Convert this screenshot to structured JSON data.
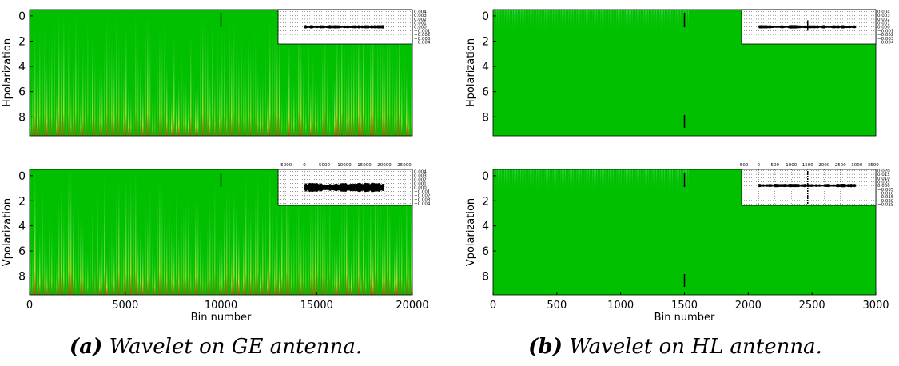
{
  "chart_data": [
    {
      "type": "heatmap",
      "ylabel": "Hpolarization",
      "xlim": [
        0,
        20000
      ],
      "ylim": [
        -0.5,
        9.5
      ],
      "y_inverted": true,
      "yticks": [
        0,
        2,
        4,
        6,
        8
      ],
      "marker_x": 10000,
      "inset": {
        "xlim": [
          -6600,
          27000
        ],
        "ylim": [
          -0.0045,
          0.0045
        ],
        "signal_x": [
          0,
          20000
        ],
        "yticks": [
          0.004,
          0.003,
          0.002,
          0.001,
          {
            "value": 0,
            "label": "0.000"
          },
          {
            "value": -0.001,
            "label": "−0.001"
          },
          {
            "value": -0.002,
            "label": "−0.002"
          },
          {
            "value": -0.003,
            "label": "−0.003"
          },
          {
            "value": -0.004,
            "label": "−0.004"
          }
        ]
      }
    },
    {
      "type": "heatmap",
      "ylabel": "Vpolarization",
      "xlabel": "Bin number",
      "xlim": [
        0,
        20000
      ],
      "ylim": [
        -0.5,
        9.5
      ],
      "y_inverted": true,
      "xticks": [
        0,
        5000,
        10000,
        15000,
        20000
      ],
      "yticks": [
        0,
        2,
        4,
        6,
        8
      ],
      "marker_x": 10000,
      "inset": {
        "xlim": [
          -6600,
          27000
        ],
        "ylim": [
          -0.0045,
          0.0045
        ],
        "signal_x": [
          0,
          20000
        ],
        "xticks": [
          {
            "value": -5000,
            "label": "−5000"
          },
          0,
          5000,
          10000,
          15000,
          20000,
          25000
        ],
        "yticks": [
          0.004,
          0.003,
          0.002,
          0.001,
          {
            "value": 0,
            "label": "0.000"
          },
          {
            "value": -0.001,
            "label": "−0.001"
          },
          {
            "value": -0.002,
            "label": "−0.002"
          },
          {
            "value": -0.003,
            "label": "−0.003"
          },
          {
            "value": -0.004,
            "label": "−0.004"
          }
        ]
      }
    },
    {
      "type": "heatmap",
      "ylabel": "Hpolarization",
      "xlim": [
        0,
        3000
      ],
      "ylim": [
        -0.5,
        9.5
      ],
      "y_inverted": true,
      "yticks": [
        0,
        2,
        4,
        6,
        8
      ],
      "marker_x": 1500,
      "inset": {
        "xlim": [
          -520,
          3580
        ],
        "ylim": [
          -0.0045,
          0.0045
        ],
        "signal_x": [
          0,
          3000
        ],
        "yticks": [
          0.004,
          0.003,
          0.002,
          0.001,
          {
            "value": 0,
            "label": "0.000"
          },
          {
            "value": -0.001,
            "label": "−0.001"
          },
          {
            "value": -0.002,
            "label": "−0.002"
          },
          {
            "value": -0.003,
            "label": "−0.003"
          },
          {
            "value": -0.004,
            "label": "−0.004"
          }
        ]
      }
    },
    {
      "type": "heatmap",
      "ylabel": "Vpolarization",
      "xlabel": "Bin number",
      "xlim": [
        0,
        3000
      ],
      "ylim": [
        -0.5,
        9.5
      ],
      "y_inverted": true,
      "xticks": [
        0,
        500,
        1000,
        1500,
        2000,
        2500,
        3000
      ],
      "yticks": [
        0,
        2,
        4,
        6,
        8
      ],
      "marker_x": 1500,
      "inset": {
        "xlim": [
          -520,
          3580
        ],
        "ylim": [
          -0.0265,
          0.0215
        ],
        "signal_x": [
          0,
          3000
        ],
        "xticks": [
          {
            "value": -500,
            "label": "−500"
          },
          0,
          500,
          1000,
          1500,
          2000,
          2500,
          3000,
          3500
        ],
        "yticks": [
          {
            "value": 0.02,
            "label": "0.020"
          },
          0.015,
          {
            "value": 0.01,
            "label": "0.010"
          },
          0.005,
          {
            "value": 0,
            "label": "0.000"
          },
          {
            "value": -0.005,
            "label": "−0.005"
          },
          {
            "value": -0.01,
            "label": "−0.010"
          },
          {
            "value": -0.015,
            "label": "−0.015"
          },
          {
            "value": -0.02,
            "label": "−0.020"
          },
          {
            "value": -0.025,
            "label": "−0.025"
          }
        ]
      }
    }
  ],
  "captions": [
    {
      "label": "(a)",
      "text": "Wavelet on GE antenna."
    },
    {
      "label": "(b)",
      "text": "Wavelet on HL antenna."
    }
  ]
}
